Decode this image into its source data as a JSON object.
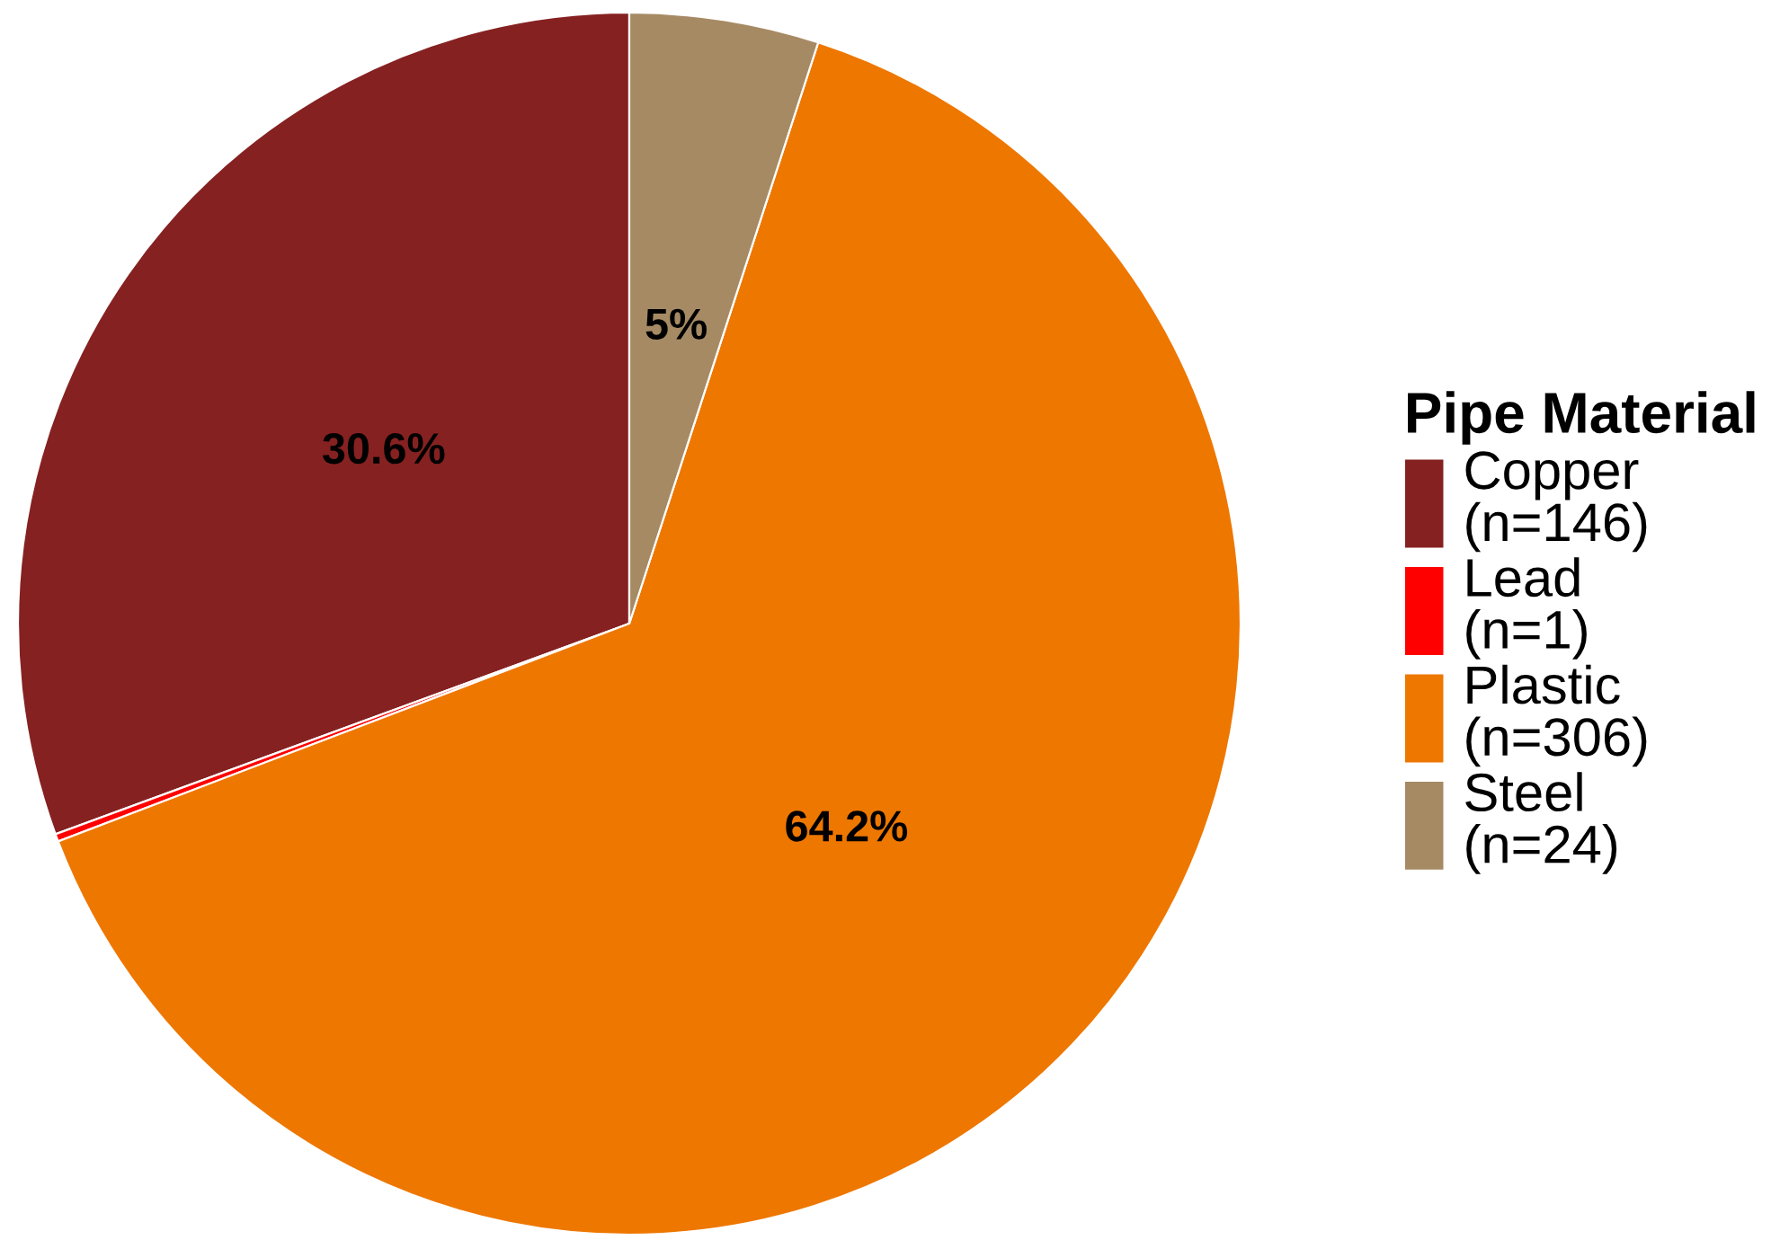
{
  "chart_data": {
    "type": "pie",
    "categories": [
      "Copper\n(n=146)",
      "Lead\n(n=1)",
      "Plastic\n(n=306)",
      "Steel\n(n=24)"
    ],
    "values": [
      30.6,
      0.2,
      64.2,
      5
    ],
    "colors": [
      "#862121",
      "#ff0000",
      "#ee7700",
      "#a68a64"
    ],
    "value_labels": [
      "30.6%",
      null,
      "64.2%",
      "5%"
    ],
    "legend_title": "Pipe Material",
    "legend": "right"
  }
}
